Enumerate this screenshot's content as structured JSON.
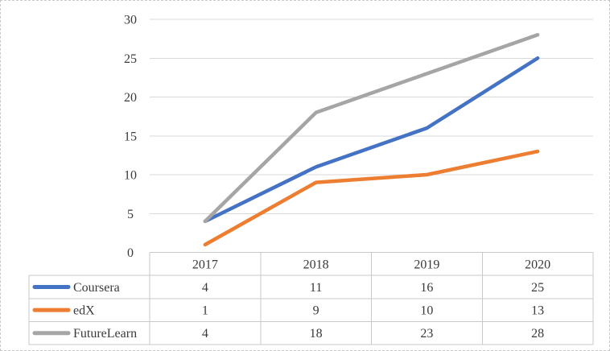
{
  "chart_data": {
    "type": "line",
    "categories": [
      "2017",
      "2018",
      "2019",
      "2020"
    ],
    "series": [
      {
        "name": "Coursera",
        "color": "#4472C4",
        "values": [
          4,
          11,
          16,
          25
        ]
      },
      {
        "name": "edX",
        "color": "#ED7D31",
        "values": [
          1,
          9,
          10,
          13
        ]
      },
      {
        "name": "FutureLearn",
        "color": "#A5A5A5",
        "values": [
          4,
          18,
          23,
          28
        ]
      }
    ],
    "ylim": [
      0,
      30
    ],
    "yticks": [
      0,
      5,
      10,
      15,
      20,
      25,
      30
    ],
    "ytick_labels": [
      "0",
      "5",
      "10",
      "15",
      "20",
      "25",
      "30"
    ],
    "grid": true,
    "legend_position": "data-table-left-column",
    "data_table_shown": true,
    "table": {
      "header_row": [
        "2017",
        "2018",
        "2019",
        "2020"
      ],
      "rows": [
        {
          "label": "Coursera",
          "cells": [
            "4",
            "11",
            "16",
            "25"
          ]
        },
        {
          "label": "edX",
          "cells": [
            "1",
            "9",
            "10",
            "13"
          ]
        },
        {
          "label": "FutureLearn",
          "cells": [
            "4",
            "18",
            "23",
            "28"
          ]
        }
      ]
    }
  },
  "colors": {
    "series_blue": "#4472C4",
    "series_orange": "#ED7D31",
    "series_gray": "#A5A5A5",
    "gridline": "#D9D9D9",
    "table_border": "#C9C9C9",
    "text": "#3A3A3A",
    "outer_border": "#C9C9C9",
    "background": "#FFFFFF"
  }
}
